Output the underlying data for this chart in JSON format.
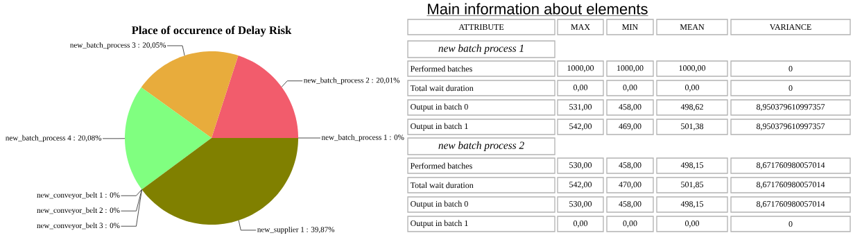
{
  "chart_data": [
    {
      "type": "pie",
      "title": "Place of occurence of Delay Risk",
      "categories": [
        "new_batch_process 1 : 0%",
        "new_batch_process 2 : 20,01%",
        "new_batch_process 3 : 20,05%",
        "new_batch_process 4 : 20,08%",
        "new_conveyor_belt 1 : 0%",
        "new_conveyor_belt 2 : 0%",
        "new_conveyor_belt 3 : 0%",
        "new_supplier 1 : 39,87%"
      ],
      "values": [
        0,
        20.01,
        20.05,
        20.08,
        0,
        0,
        0,
        39.87
      ],
      "colors": [
        "#4f81bd",
        "#f25c6c",
        "#e8ac3c",
        "#80ff80",
        "#8064a2",
        "#4bacc6",
        "#f79646",
        "#808000"
      ]
    },
    {
      "type": "other",
      "title": "Main information about elements",
      "ylabel": "ATTRIBUTE",
      "categories": [
        "MAX",
        "MIN",
        "MEAN",
        "VARIANCE"
      ],
      "y_categories": [
        "new batch process 1",
        "Performed batches",
        "Total wait duration",
        "Output in batch 0",
        "Output in batch 1",
        "new batch process 2",
        "Performed batches",
        "Total wait duration",
        "Output in batch 0",
        "Output in batch 1"
      ],
      "cell_labels": [
        [
          null,
          null,
          null,
          null
        ],
        [
          "1000,00",
          "1000,00",
          "1000,00",
          "0"
        ],
        [
          "0,00",
          "0,00",
          "0,00",
          "0"
        ],
        [
          "531,00",
          "458,00",
          "498,62",
          "8,950379610997357"
        ],
        [
          "542,00",
          "469,00",
          "501,38",
          "8,950379610997357"
        ],
        [
          null,
          null,
          null,
          null
        ],
        [
          "530,00",
          "458,00",
          "498,15",
          "8,671760980057014"
        ],
        [
          "542,00",
          "470,00",
          "501,85",
          "8,671760980057014"
        ],
        [
          "530,00",
          "458,00",
          "498,15",
          "8,671760980057014"
        ],
        [
          "0,00",
          "0,00",
          "0,00",
          "0"
        ]
      ]
    }
  ]
}
